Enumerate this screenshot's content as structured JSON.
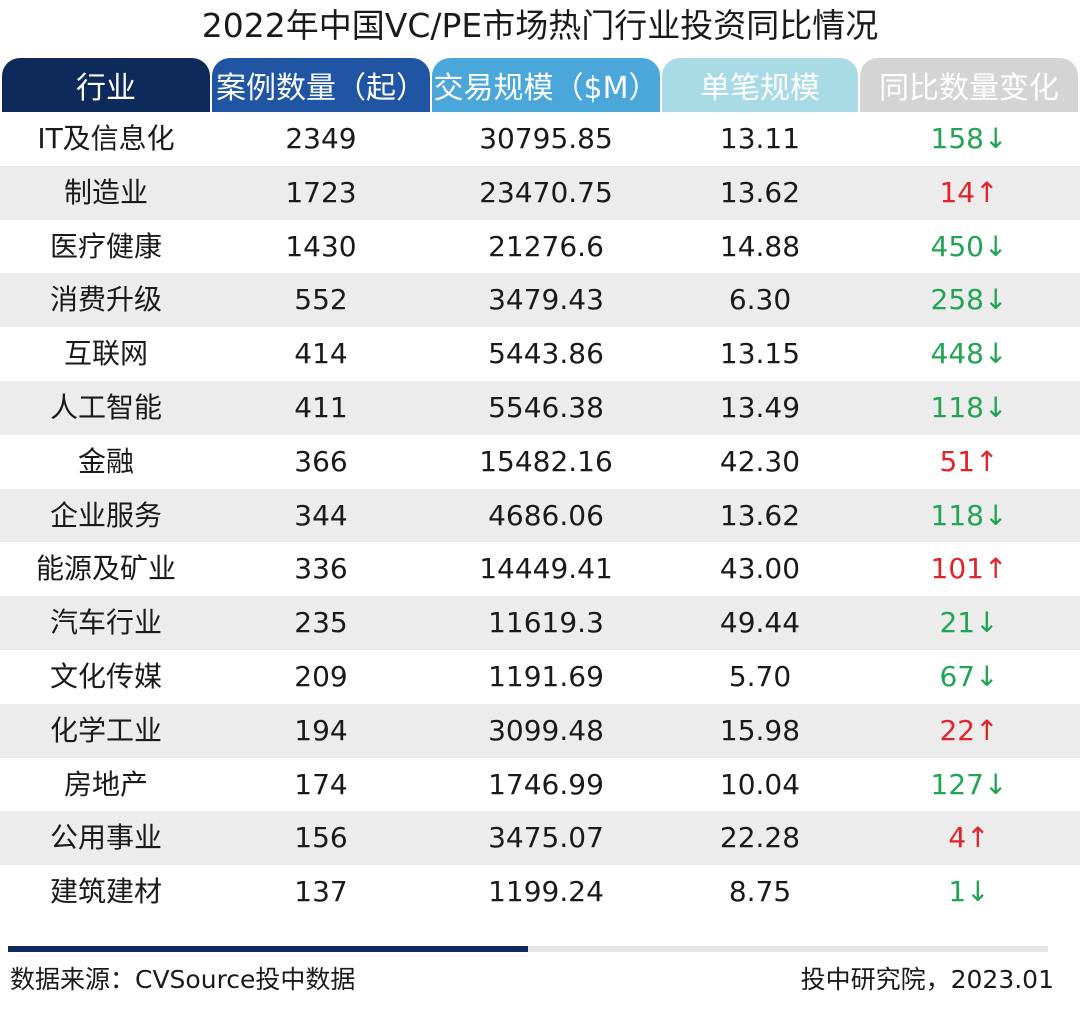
{
  "title": "2022年中国VC/PE市场热门行业投资同比情况",
  "colors": {
    "header_industry": "#0e2a5a",
    "header_cases": "#1f55a3",
    "header_volume": "#4ba6da",
    "header_avg": "#a8dbe6",
    "header_change": "#d4d4d4",
    "decrease": "#22a454",
    "increase": "#e0242b",
    "row_alt": "#ececec"
  },
  "chart_data": {
    "type": "table",
    "title": "2022年中国VC/PE市场热门行业投资同比情况",
    "columns": [
      "行业",
      "案例数量（起）",
      "交易规模（$M）",
      "单笔规模",
      "同比数量变化"
    ],
    "rows": [
      {
        "industry": "IT及信息化",
        "cases": "2349",
        "volume": "30795.85",
        "avg": "13.11",
        "change": "158",
        "dir": "down"
      },
      {
        "industry": "制造业",
        "cases": "1723",
        "volume": "23470.75",
        "avg": "13.62",
        "change": "14",
        "dir": "up"
      },
      {
        "industry": "医疗健康",
        "cases": "1430",
        "volume": "21276.6",
        "avg": "14.88",
        "change": "450",
        "dir": "down"
      },
      {
        "industry": "消费升级",
        "cases": "552",
        "volume": "3479.43",
        "avg": "6.30",
        "change": "258",
        "dir": "down"
      },
      {
        "industry": "互联网",
        "cases": "414",
        "volume": "5443.86",
        "avg": "13.15",
        "change": "448",
        "dir": "down"
      },
      {
        "industry": "人工智能",
        "cases": "411",
        "volume": "5546.38",
        "avg": "13.49",
        "change": "118",
        "dir": "down"
      },
      {
        "industry": "金融",
        "cases": "366",
        "volume": "15482.16",
        "avg": "42.30",
        "change": "51",
        "dir": "up"
      },
      {
        "industry": "企业服务",
        "cases": "344",
        "volume": "4686.06",
        "avg": "13.62",
        "change": "118",
        "dir": "down"
      },
      {
        "industry": "能源及矿业",
        "cases": "336",
        "volume": "14449.41",
        "avg": "43.00",
        "change": "101",
        "dir": "up"
      },
      {
        "industry": "汽车行业",
        "cases": "235",
        "volume": "11619.3",
        "avg": "49.44",
        "change": "21",
        "dir": "down"
      },
      {
        "industry": "文化传媒",
        "cases": "209",
        "volume": "1191.69",
        "avg": "5.70",
        "change": "67",
        "dir": "down"
      },
      {
        "industry": "化学工业",
        "cases": "194",
        "volume": "3099.48",
        "avg": "15.98",
        "change": "22",
        "dir": "up"
      },
      {
        "industry": "房地产",
        "cases": "174",
        "volume": "1746.99",
        "avg": "10.04",
        "change": "127",
        "dir": "down"
      },
      {
        "industry": "公用事业",
        "cases": "156",
        "volume": "3475.07",
        "avg": "22.28",
        "change": "4",
        "dir": "up"
      },
      {
        "industry": "建筑建材",
        "cases": "137",
        "volume": "1199.24",
        "avg": "8.75",
        "change": "1",
        "dir": "down"
      }
    ]
  },
  "arrows": {
    "up": "↑",
    "down": "↓"
  },
  "footer": {
    "source": "数据来源：CVSource投中数据",
    "credit": "投中研究院，2023.01",
    "progress": 0.5
  }
}
